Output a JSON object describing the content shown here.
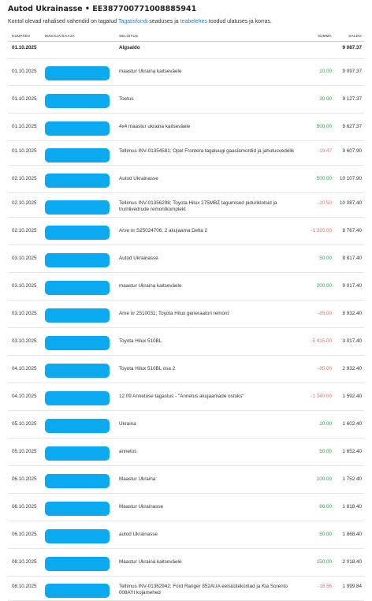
{
  "header": {
    "title": "Autod Ukrainasse • EE387700771008885941",
    "intro_prefix": "Kontol olevad rahalised vahendid on tagatud ",
    "intro_link1": "Tagatisfondi",
    "intro_mid": " seaduses ja ",
    "intro_link2": "teabelehes",
    "intro_suffix": " toodud ulatuses ja korras."
  },
  "colors": {
    "positive": "#2e9e4f",
    "negative": "#e07272",
    "redaction": "#0aa9f0",
    "link": "#2f7ec7"
  },
  "table": {
    "columns": {
      "date": "KUUPÄEV",
      "payer": "MAKSJA/SAAJA",
      "desc": "SELGITUS",
      "sum": "SUMMA",
      "balance": "SALDO"
    },
    "opening": {
      "date": "01.10.2025",
      "label": "Algsaldo",
      "balance": "9 087.37"
    },
    "rows": [
      {
        "date": "01.10.2025",
        "desc": "maastur Ukraina kaitseväele",
        "sum": "10.00",
        "sign": "pos",
        "balance": "9 097.37",
        "lines": 1
      },
      {
        "date": "01.10.2025",
        "desc": "Toetus",
        "sum": "30.00",
        "sign": "pos",
        "balance": "9 127.37",
        "lines": 1
      },
      {
        "date": "01.10.2025",
        "desc": "4x4 maastur ukraina kaitseväele",
        "sum": "500.00",
        "sign": "pos",
        "balance": "9 627.37",
        "lines": 1
      },
      {
        "date": "01.10.2025",
        "desc": "Tellimus INV-01354581; Opel Frontera tagaluugi gaasiamordid ja jahutusvedelik",
        "sum": "-19.47",
        "sign": "neg",
        "balance": "9 607.90",
        "lines": 2
      },
      {
        "date": "02.10.2025",
        "desc": "Autod Ukrainasse",
        "sum": "500.00",
        "sign": "pos",
        "balance": "10 107.90",
        "lines": 1
      },
      {
        "date": "02.10.2025",
        "desc": "Tellimus INV-01356298; Toyota Hilux 275MBZ tagumised piduriklotsid ja trumlivedrude remontkomplekt",
        "sum": "-20.50",
        "sign": "neg",
        "balance": "10 087.40",
        "lines": 2
      },
      {
        "date": "02.10.2025",
        "desc": "Arve nr S25024706, 2 akujaama Delta 2",
        "sum": "-1 320.00",
        "sign": "neg",
        "balance": "8 767.40",
        "lines": 1
      },
      {
        "date": "03.10.2025",
        "desc": "Autod Ukrainasse",
        "sum": "50.00",
        "sign": "pos",
        "balance": "8 817.40",
        "lines": 1
      },
      {
        "date": "03.10.2025",
        "desc": "maastur Ukraina kaitseväele",
        "sum": "200.00",
        "sign": "pos",
        "balance": "9 017.40",
        "lines": 1
      },
      {
        "date": "03.10.2025",
        "desc": "Arve nr 2510031; Toyota Hilux generaatori remont",
        "sum": "-85.00",
        "sign": "neg",
        "balance": "8 932.40",
        "lines": 1
      },
      {
        "date": "03.10.2025",
        "desc": "Toyota Hilux 510BL",
        "sum": "-5 915.00",
        "sign": "neg",
        "balance": "3 017.40",
        "lines": 1
      },
      {
        "date": "04.10.2025",
        "desc": "Toyota Hilux 510BL osa 2",
        "sum": "-85.00",
        "sign": "neg",
        "balance": "2 932.40",
        "lines": 1
      },
      {
        "date": "04.10.2025",
        "desc": "12.09 Annetuse tagastus - \"Annetus akujaamade ostuks\"",
        "sum": "-1 340.00",
        "sign": "neg",
        "balance": "1 592.40",
        "lines": 1
      },
      {
        "date": "05.10.2025",
        "desc": "Ukraina",
        "sum": "10.00",
        "sign": "pos",
        "balance": "1 602.40",
        "lines": 1
      },
      {
        "date": "05.10.2025",
        "desc": "annetus",
        "sum": "50.00",
        "sign": "pos",
        "balance": "1 652.40",
        "lines": 1
      },
      {
        "date": "06.10.2025",
        "desc": "Maastur Ukraina",
        "sum": "100.00",
        "sign": "pos",
        "balance": "1 752.40",
        "lines": 1
      },
      {
        "date": "06.10.2025",
        "desc": "Maastur Ukrainasse",
        "sum": "66.00",
        "sign": "pos",
        "balance": "1 818.40",
        "lines": 1
      },
      {
        "date": "06.10.2025",
        "desc": "autod Ukrainasse",
        "sum": "50.00",
        "sign": "pos",
        "balance": "1 868.40",
        "lines": 1
      },
      {
        "date": "08.10.2025",
        "desc": "Maastur Ukraina kaitseväele",
        "sum": "150.00",
        "sign": "pos",
        "balance": "2 018.40",
        "lines": 1
      },
      {
        "date": "08.10.2025",
        "desc": "Tellimus INV-01362942; Ford Ranger 852AUA eelsüütekünlad ja Kia Sorento 008AYI kojamehed",
        "sum": "-18.56",
        "sign": "neg",
        "balance": "1 999.84",
        "lines": 2
      }
    ]
  }
}
